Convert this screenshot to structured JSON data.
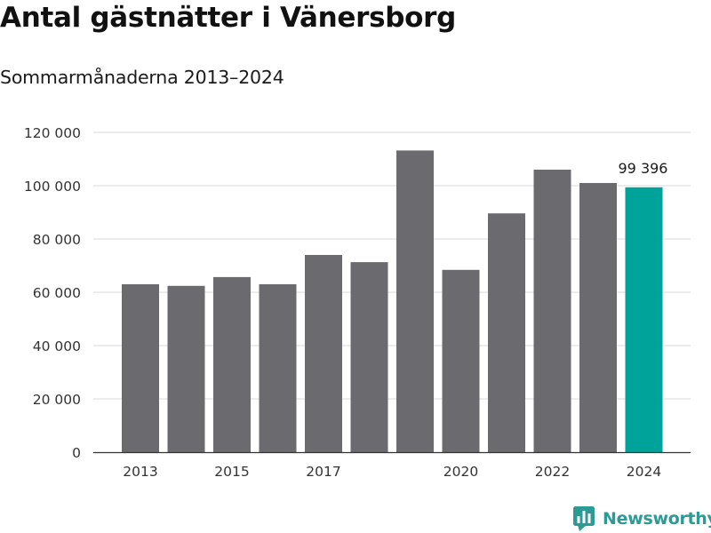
{
  "header": {
    "title": "Antal gästnätter i Vänersborg",
    "subtitle": "Sommarmånaderna 2013–2024"
  },
  "brand": {
    "name": "Newsworthy",
    "color": "#2c9a95"
  },
  "chart_data": {
    "type": "bar",
    "categories": [
      "2013",
      "2014",
      "2015",
      "2016",
      "2017",
      "2018",
      "2019",
      "2020",
      "2021",
      "2022",
      "2023",
      "2024"
    ],
    "values": [
      63000,
      62400,
      65700,
      63000,
      74000,
      71300,
      113200,
      68400,
      89600,
      106000,
      101000,
      99396
    ],
    "x_tick_labels": [
      "2013",
      "",
      "2015",
      "",
      "2017",
      "",
      "",
      "2020",
      "",
      "2022",
      "",
      "2024"
    ],
    "y_ticks": [
      0,
      20000,
      40000,
      60000,
      80000,
      100000,
      120000
    ],
    "y_tick_labels": [
      "0",
      "20 000",
      "40 000",
      "60 000",
      "80 000",
      "100 000",
      "120 000"
    ],
    "ylim": [
      0,
      120000
    ],
    "grid": true,
    "bar_color": "#6b6a6f",
    "highlight_color": "#00a39a",
    "highlight_index": 11,
    "data_labels": [
      "",
      "",
      "",
      "",
      "",
      "",
      "",
      "",
      "",
      "",
      "",
      "99 396"
    ],
    "xlabel": "",
    "ylabel": ""
  }
}
